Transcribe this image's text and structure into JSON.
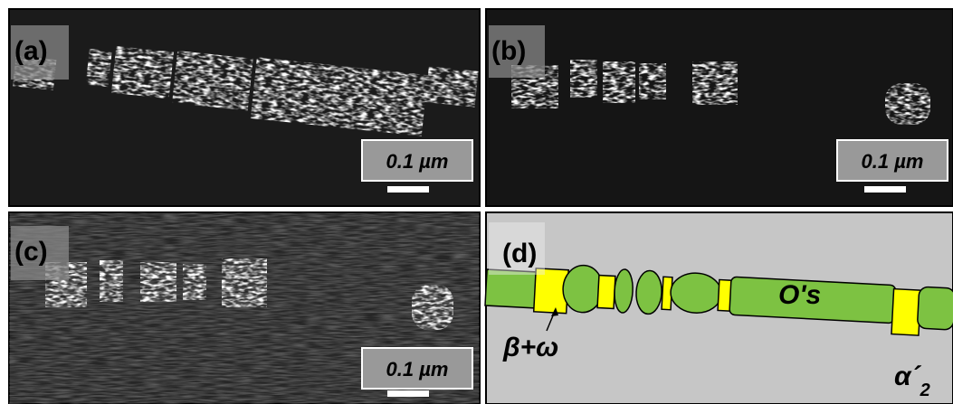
{
  "panels": [
    {
      "label": "(a)",
      "scale_bar": "0.1 µm"
    },
    {
      "label": "(b)",
      "scale_bar": "0.1 µm"
    },
    {
      "label": "(c)",
      "scale_bar": "0.1 µm"
    },
    {
      "label": "(d)",
      "annotations": {
        "segment": "O's",
        "phase": "β+ω",
        "matrix": "α´",
        "matrix_subscript": "2"
      }
    }
  ]
}
